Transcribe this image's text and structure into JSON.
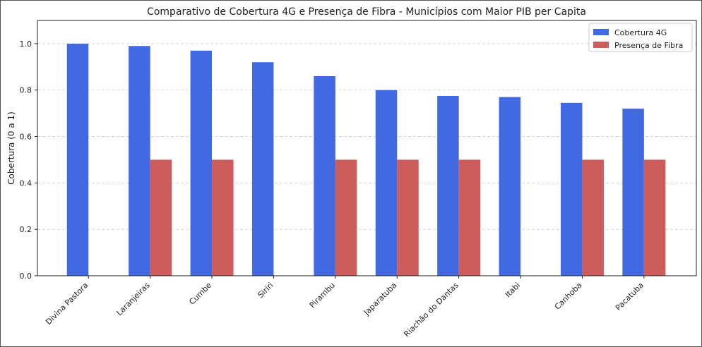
{
  "chart_data": {
    "type": "bar",
    "title": "Comparativo de Cobertura 4G e Presença de Fibra - Municípios com Maior PIB per Capita",
    "xlabel": "",
    "ylabel": "Cobertura (0 a 1)",
    "ylim": [
      0,
      1.1
    ],
    "yticks": [
      "0.0",
      "0.2",
      "0.4",
      "0.6",
      "0.8",
      "1.0"
    ],
    "grid": "horizontal-dashed",
    "legend_position": "top-right",
    "categories": [
      "Divina Pastora",
      "Laranjeiras",
      "Cumbe",
      "Siriri",
      "Pirambu",
      "Japaratuba",
      "Riachão do Dantas",
      "Itabi",
      "Canhoba",
      "Pacatuba"
    ],
    "series": [
      {
        "name": "Cobertura 4G",
        "color": "#4169e1",
        "values": [
          1.0,
          0.99,
          0.97,
          0.92,
          0.86,
          0.8,
          0.775,
          0.77,
          0.745,
          0.72
        ]
      },
      {
        "name": "Presença de Fibra",
        "color": "#cd5c5c",
        "values": [
          0,
          0.5,
          0.5,
          0,
          0.5,
          0.5,
          0.5,
          0,
          0.5,
          0.5
        ]
      }
    ]
  }
}
